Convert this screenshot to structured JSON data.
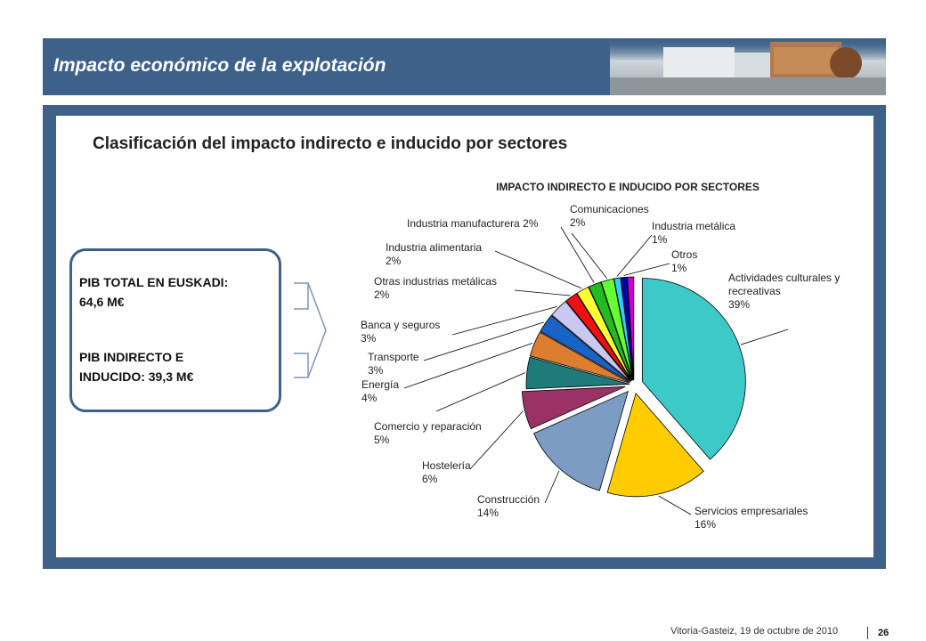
{
  "header": {
    "title": "Impacto económico de la explotación"
  },
  "subtitle": "Clasificación del impacto indirecto e inducido por sectores",
  "pib": {
    "total_line1": "PIB TOTAL EN EUSKADI:",
    "total_line2": "64,6  M€",
    "indirect_line1": "PIB INDIRECTO E",
    "indirect_line2": "INDUCIDO:   39,3 M€"
  },
  "footer": {
    "date": "Vitoria-Gasteiz, 19 de octubre de 2010",
    "page": "26"
  },
  "colors": {
    "header_bg": "#3d6189",
    "frame_bg": "#3d6189"
  },
  "chart_data": {
    "type": "pie",
    "title": "IMPACTO INDIRECTO E INDUCIDO POR SECTORES",
    "unit": "%",
    "slices": [
      {
        "label": "Actividades culturales y recreativas",
        "value": 39,
        "color": "#3ec9c9"
      },
      {
        "label": "Servicios empresariales",
        "value": 16,
        "color": "#ffcc00"
      },
      {
        "label": "Construcción",
        "value": 14,
        "color": "#7c9cc4"
      },
      {
        "label": "Hostelería",
        "value": 6,
        "color": "#993366"
      },
      {
        "label": "Comercio y reparación",
        "value": 5,
        "color": "#1f7a7a"
      },
      {
        "label": "Energía",
        "value": 4,
        "color": "#dd7d30"
      },
      {
        "label": "Transporte",
        "value": 3,
        "color": "#1a63c6"
      },
      {
        "label": "Banca y seguros",
        "value": 3,
        "color": "#c8c8f0"
      },
      {
        "label": "Otras industrias metálicas",
        "value": 2,
        "color": "#ee1111"
      },
      {
        "label": "Industria alimentaria",
        "value": 2,
        "color": "#ffff33"
      },
      {
        "label": "Industria manufacturera",
        "value": 2,
        "color": "#22bb22"
      },
      {
        "label": "Comunicaciones",
        "value": 2,
        "color": "#66ff33"
      },
      {
        "label": "Industria metálica",
        "value": 1,
        "color": "#33ccff"
      },
      {
        "label": "Otros",
        "value": 1,
        "color": "#0000aa"
      },
      {
        "label": "",
        "value": 1,
        "color": "#cc00cc"
      }
    ]
  }
}
